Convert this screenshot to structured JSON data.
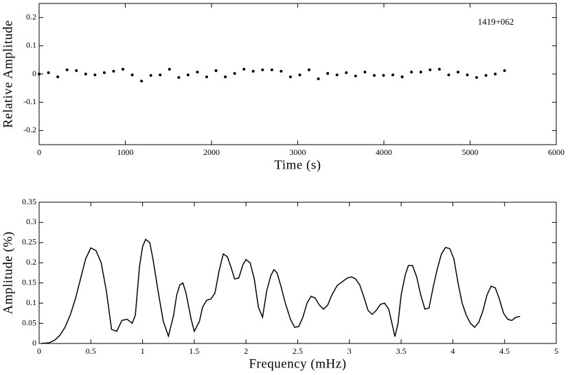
{
  "chart_data": [
    {
      "type": "scatter",
      "annotation": "1419+062",
      "xlabel": "Time (s)",
      "ylabel": "Relative Amplitude",
      "color": "#000000",
      "x": [
        0,
        108,
        216,
        324,
        432,
        540,
        648,
        756,
        864,
        972,
        1080,
        1188,
        1296,
        1404,
        1512,
        1620,
        1728,
        1836,
        1944,
        2052,
        2160,
        2268,
        2376,
        2484,
        2592,
        2700,
        2808,
        2916,
        3024,
        3132,
        3240,
        3348,
        3456,
        3564,
        3672,
        3780,
        3888,
        3996,
        4104,
        4212,
        4320,
        4428,
        4536,
        4644,
        4752,
        4860,
        4968,
        5076,
        5184,
        5292,
        5400
      ],
      "values": [
        0,
        0.005,
        -0.01,
        0.015,
        0.012,
        0,
        -0.003,
        0.005,
        0.01,
        0.017,
        -0.003,
        -0.025,
        -0.005,
        -0.003,
        0.017,
        -0.012,
        -0.003,
        0.007,
        -0.01,
        0.012,
        -0.01,
        0.002,
        0.017,
        0.01,
        0.015,
        0.015,
        0.01,
        -0.01,
        -0.003,
        0.015,
        -0.017,
        0.002,
        -0.003,
        0.005,
        -0.007,
        0.007,
        -0.005,
        -0.005,
        -0.003,
        -0.01,
        0.007,
        0.007,
        0.015,
        0.017,
        -0.003,
        0.007,
        -0.003,
        -0.012,
        -0.005,
        0,
        0.012
      ],
      "xlim": [
        0,
        6000
      ],
      "xticks": [
        0,
        1000,
        2000,
        3000,
        4000,
        5000,
        6000
      ],
      "ylim": [
        -0.25,
        0.25
      ],
      "yticks": [
        -0.2,
        -0.1,
        0,
        0.1,
        0.2
      ]
    },
    {
      "type": "line",
      "xlabel": "Frequency (mHz)",
      "ylabel": "Amplitude (%)",
      "color": "#000000",
      "x": [
        0.02,
        0.1,
        0.15,
        0.2,
        0.25,
        0.3,
        0.35,
        0.4,
        0.45,
        0.5,
        0.55,
        0.6,
        0.65,
        0.7,
        0.75,
        0.8,
        0.85,
        0.9,
        0.93,
        0.97,
        1.0,
        1.03,
        1.07,
        1.1,
        1.15,
        1.2,
        1.25,
        1.3,
        1.33,
        1.36,
        1.39,
        1.42,
        1.47,
        1.5,
        1.55,
        1.58,
        1.62,
        1.66,
        1.7,
        1.74,
        1.78,
        1.82,
        1.86,
        1.89,
        1.93,
        1.97,
        2.0,
        2.04,
        2.08,
        2.12,
        2.16,
        2.2,
        2.24,
        2.27,
        2.3,
        2.34,
        2.38,
        2.43,
        2.47,
        2.51,
        2.55,
        2.59,
        2.63,
        2.67,
        2.71,
        2.75,
        2.79,
        2.83,
        2.88,
        2.93,
        2.98,
        3.02,
        3.06,
        3.1,
        3.14,
        3.18,
        3.22,
        3.26,
        3.3,
        3.34,
        3.38,
        3.42,
        3.44,
        3.47,
        3.5,
        3.54,
        3.57,
        3.61,
        3.65,
        3.69,
        3.73,
        3.77,
        3.81,
        3.85,
        3.89,
        3.93,
        3.97,
        4.01,
        4.05,
        4.09,
        4.13,
        4.17,
        4.21,
        4.25,
        4.29,
        4.33,
        4.37,
        4.41,
        4.45,
        4.49,
        4.53,
        4.57,
        4.61,
        4.65
      ],
      "values": [
        0,
        0.002,
        0.008,
        0.02,
        0.04,
        0.07,
        0.11,
        0.16,
        0.21,
        0.237,
        0.23,
        0.2,
        0.13,
        0.035,
        0.03,
        0.057,
        0.06,
        0.05,
        0.07,
        0.19,
        0.24,
        0.258,
        0.25,
        0.21,
        0.13,
        0.055,
        0.018,
        0.07,
        0.12,
        0.145,
        0.15,
        0.125,
        0.06,
        0.03,
        0.055,
        0.09,
        0.107,
        0.11,
        0.125,
        0.18,
        0.222,
        0.215,
        0.185,
        0.16,
        0.162,
        0.195,
        0.208,
        0.2,
        0.16,
        0.09,
        0.065,
        0.13,
        0.168,
        0.183,
        0.175,
        0.14,
        0.1,
        0.06,
        0.04,
        0.042,
        0.065,
        0.1,
        0.117,
        0.112,
        0.095,
        0.085,
        0.095,
        0.12,
        0.143,
        0.153,
        0.162,
        0.165,
        0.16,
        0.145,
        0.115,
        0.082,
        0.072,
        0.082,
        0.097,
        0.1,
        0.085,
        0.04,
        0.017,
        0.05,
        0.12,
        0.17,
        0.193,
        0.193,
        0.165,
        0.12,
        0.085,
        0.088,
        0.14,
        0.185,
        0.222,
        0.238,
        0.235,
        0.21,
        0.15,
        0.1,
        0.07,
        0.05,
        0.04,
        0.052,
        0.08,
        0.12,
        0.142,
        0.138,
        0.11,
        0.075,
        0.06,
        0.057,
        0.065,
        0.067
      ],
      "xlim": [
        0,
        5
      ],
      "xticks": [
        0,
        0.5,
        1,
        1.5,
        2,
        2.5,
        3,
        3.5,
        4,
        4.5,
        5
      ],
      "ylim": [
        0,
        0.35
      ],
      "yticks": [
        0,
        0.05,
        0.1,
        0.15,
        0.2,
        0.25,
        0.3,
        0.35
      ]
    }
  ]
}
